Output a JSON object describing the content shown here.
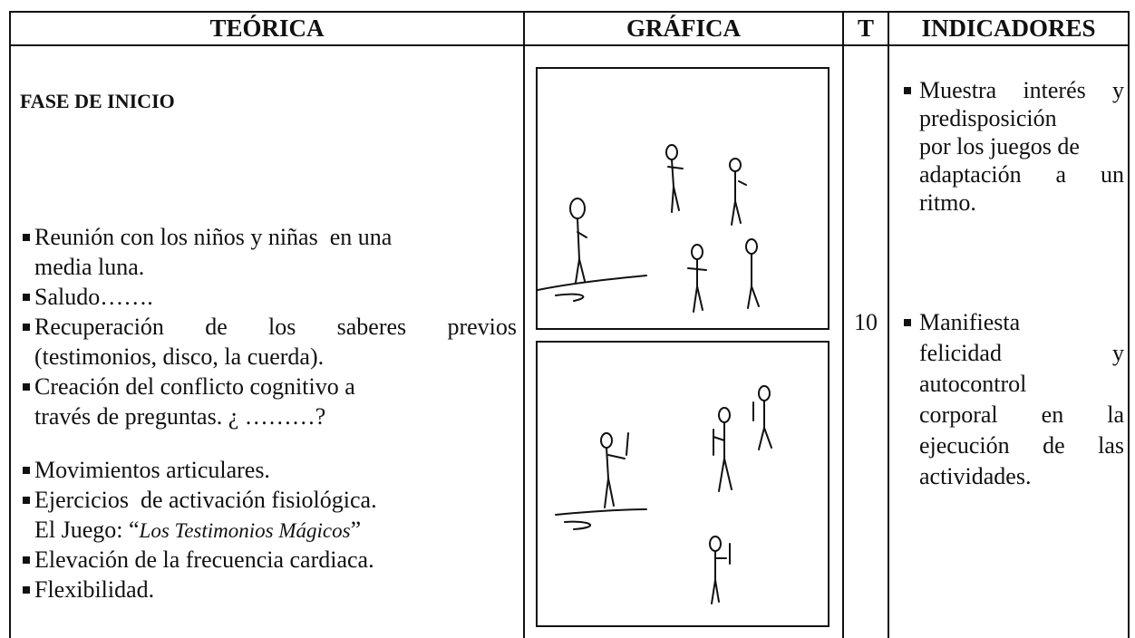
{
  "table": {
    "headers": [
      "TEÓRICA",
      "GRÁFICA",
      "T",
      "INDICADORES"
    ],
    "teorica": {
      "heading": "FASE DE INICIO",
      "items": [
        {
          "lines": [
            "Reunión con los niños y niñas  en una",
            "media luna."
          ]
        },
        {
          "lines": [
            "Saludo……."
          ]
        },
        {
          "lines": [
            "Recuperación de los saberes previos",
            "(testimonios, disco, la cuerda)."
          ]
        },
        {
          "lines": [
            "Creación del conflicto cognitivo a",
            "través de preguntas. ¿ ………?"
          ]
        },
        {
          "lines": [
            "Movimientos articulares."
          ]
        },
        {
          "lines": [
            "Ejercicios  de activación fisiológica."
          ],
          "note": {
            "prefix": "El Juego: “",
            "italic": "Los Testimonios Mágicos",
            "suffix": "”"
          }
        },
        {
          "lines": [
            "Elevación de la frecuencia cardiaca."
          ]
        },
        {
          "lines": [
            "Flexibilidad."
          ]
        }
      ]
    },
    "time": 10,
    "indicators": [
      {
        "lines": [
          "Muestra interés y",
          "predisposición",
          "por los juegos de",
          "adaptación a un",
          "ritmo."
        ]
      },
      {
        "lines": [
          "Manifiesta",
          "felicidad y",
          "autocontrol",
          "corporal en la",
          "ejecución de las",
          "actividades."
        ]
      }
    ]
  }
}
